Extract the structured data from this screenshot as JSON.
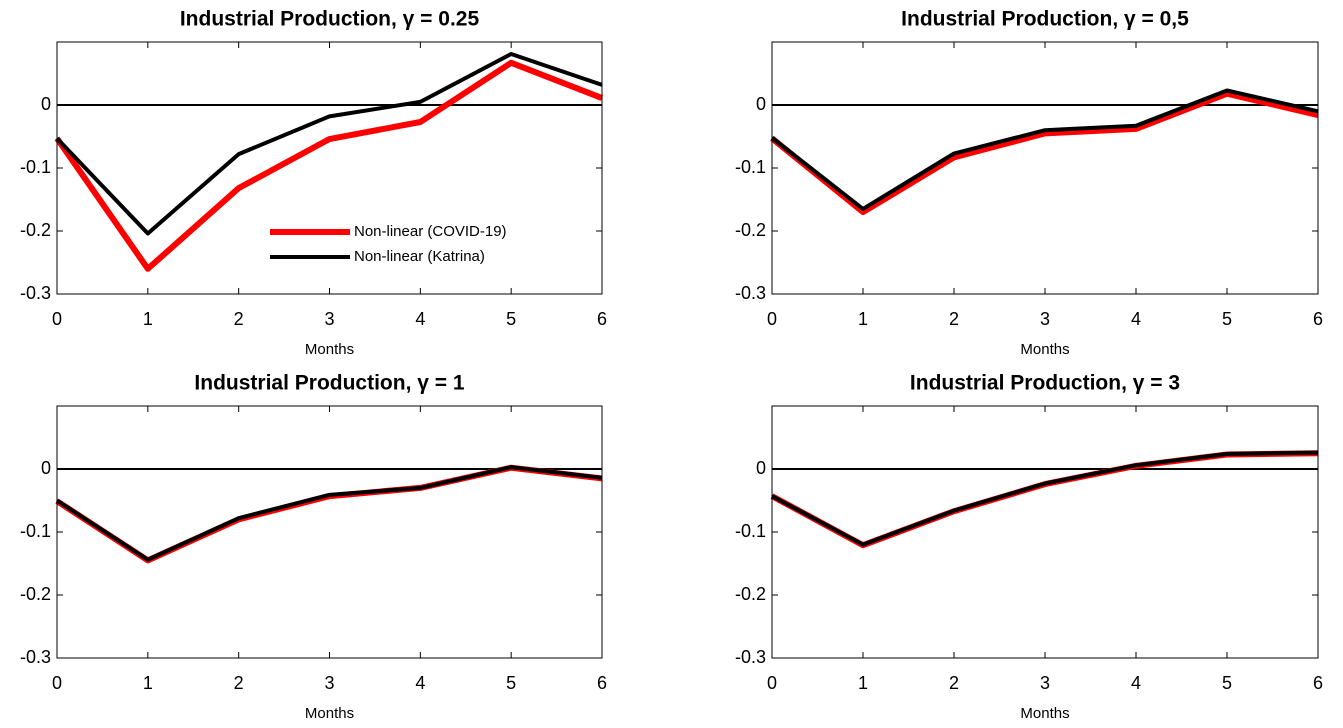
{
  "chart_data": [
    {
      "type": "line",
      "title": "Industrial Production, γ = 0.25",
      "xlabel": "Months",
      "x": [
        0,
        1,
        2,
        3,
        4,
        5,
        6
      ],
      "xlim": [
        0,
        6
      ],
      "xticks": [
        0,
        1,
        2,
        3,
        4,
        5,
        6
      ],
      "ylim": [
        -0.3,
        0.1
      ],
      "yticks": [
        -0.3,
        -0.2,
        -0.1,
        0
      ],
      "hline": 0,
      "legend": "lower right",
      "series": [
        {
          "name": "Non-linear (COVID-19)",
          "color": "#ff0000",
          "values": [
            -0.053,
            -0.26,
            -0.132,
            -0.054,
            -0.027,
            0.067,
            0.011
          ]
        },
        {
          "name": "Non-linear (Katrina)",
          "color": "#000000",
          "values": [
            -0.053,
            -0.204,
            -0.078,
            -0.018,
            0.005,
            0.081,
            0.032
          ]
        }
      ]
    },
    {
      "type": "line",
      "title": "Industrial Production, γ = 0,5",
      "xlabel": "Months",
      "x": [
        0,
        1,
        2,
        3,
        4,
        5,
        6
      ],
      "xlim": [
        0,
        6
      ],
      "xticks": [
        0,
        1,
        2,
        3,
        4,
        5,
        6
      ],
      "ylim": [
        -0.3,
        0.1
      ],
      "yticks": [
        -0.3,
        -0.2,
        -0.1,
        0
      ],
      "hline": 0,
      "series": [
        {
          "color": "#ff0000",
          "values": [
            -0.053,
            -0.17,
            -0.083,
            -0.045,
            -0.038,
            0.018,
            -0.016
          ]
        },
        {
          "color": "#000000",
          "values": [
            -0.052,
            -0.165,
            -0.077,
            -0.04,
            -0.033,
            0.023,
            -0.01
          ]
        }
      ]
    },
    {
      "type": "line",
      "title": "Industrial Production, γ = 1",
      "xlabel": "Months",
      "x": [
        0,
        1,
        2,
        3,
        4,
        5,
        6
      ],
      "xlim": [
        0,
        6
      ],
      "xticks": [
        0,
        1,
        2,
        3,
        4,
        5,
        6
      ],
      "ylim": [
        -0.3,
        0.1
      ],
      "yticks": [
        -0.3,
        -0.2,
        -0.1,
        0
      ],
      "hline": 0,
      "series": [
        {
          "color": "#ff0000",
          "values": [
            -0.051,
            -0.145,
            -0.08,
            -0.043,
            -0.03,
            0.002,
            -0.015
          ]
        },
        {
          "color": "#000000",
          "values": [
            -0.05,
            -0.144,
            -0.078,
            -0.041,
            -0.03,
            0.003,
            -0.014
          ]
        }
      ]
    },
    {
      "type": "line",
      "title": "Industrial Production, γ = 3",
      "xlabel": "Months",
      "x": [
        0,
        1,
        2,
        3,
        4,
        5,
        6
      ],
      "xlim": [
        0,
        6
      ],
      "xticks": [
        0,
        1,
        2,
        3,
        4,
        5,
        6
      ],
      "ylim": [
        -0.3,
        0.1
      ],
      "yticks": [
        -0.3,
        -0.2,
        -0.1,
        0
      ],
      "hline": 0,
      "series": [
        {
          "color": "#ff0000",
          "values": [
            -0.043,
            -0.121,
            -0.067,
            -0.024,
            0.005,
            0.023,
            0.025
          ]
        },
        {
          "color": "#000000",
          "values": [
            -0.043,
            -0.12,
            -0.066,
            -0.023,
            0.006,
            0.024,
            0.026
          ]
        }
      ]
    }
  ]
}
